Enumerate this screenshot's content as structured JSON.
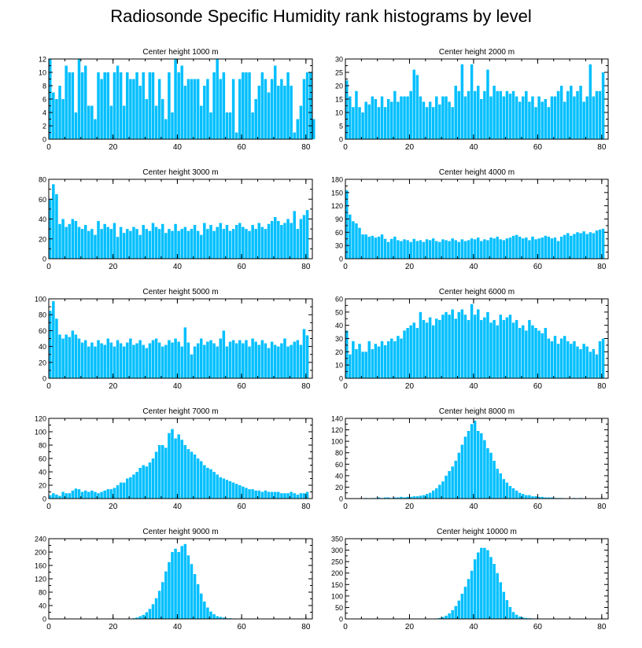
{
  "title": "Radiosonde Specific Humidity rank histograms by level",
  "bar_color": "#00bfff",
  "chart_data": [
    {
      "type": "bar",
      "title": "Center height 1000 m",
      "xlim": [
        0,
        82
      ],
      "ylim": [
        0,
        12
      ],
      "xticks": [
        0,
        20,
        40,
        60,
        80
      ],
      "yticks": [
        0,
        2,
        4,
        6,
        8,
        10,
        12
      ],
      "values": [
        12,
        7,
        6,
        8,
        6,
        11,
        10,
        10,
        4,
        12,
        10,
        11,
        5,
        5,
        3,
        10,
        9,
        10,
        10,
        5,
        10,
        11,
        10,
        5,
        10,
        9,
        9,
        10,
        8,
        10,
        6,
        10,
        10,
        5,
        9,
        6,
        3,
        10,
        4,
        12,
        10,
        11,
        8,
        9,
        9,
        9,
        9,
        5,
        8,
        9,
        4,
        10,
        12,
        9,
        10,
        4,
        4,
        9,
        1,
        9,
        10,
        10,
        10,
        4,
        6,
        8,
        10,
        9,
        7,
        9,
        11,
        8,
        9,
        8,
        10,
        8,
        1,
        3,
        5,
        9,
        10,
        10,
        3
      ]
    },
    {
      "type": "bar",
      "title": "Center height 2000 m",
      "xlim": [
        0,
        82
      ],
      "ylim": [
        0,
        30
      ],
      "xticks": [
        0,
        20,
        40,
        60,
        80
      ],
      "yticks": [
        0,
        5,
        10,
        15,
        20,
        25,
        30
      ],
      "values": [
        22,
        16,
        12,
        18,
        12,
        10,
        14,
        13,
        16,
        15,
        12,
        16,
        12,
        15,
        14,
        18,
        14,
        16,
        16,
        16,
        18,
        26,
        24,
        16,
        14,
        12,
        14,
        12,
        16,
        13,
        16,
        16,
        14,
        12,
        20,
        18,
        28,
        16,
        18,
        28,
        18,
        20,
        15,
        18,
        26,
        16,
        20,
        18,
        18,
        16,
        18,
        17,
        18,
        16,
        14,
        16,
        18,
        14,
        16,
        12,
        16,
        14,
        15,
        12,
        16,
        16,
        18,
        20,
        14,
        18,
        20,
        16,
        18,
        20,
        14,
        16,
        28,
        16,
        18,
        18,
        25
      ]
    },
    {
      "type": "bar",
      "title": "Center height 3000 m",
      "xlim": [
        0,
        82
      ],
      "ylim": [
        0,
        80
      ],
      "xticks": [
        0,
        20,
        40,
        60,
        80
      ],
      "yticks": [
        0,
        20,
        40,
        60,
        80
      ],
      "values": [
        60,
        75,
        65,
        35,
        40,
        32,
        35,
        40,
        38,
        32,
        30,
        34,
        28,
        30,
        24,
        38,
        30,
        35,
        32,
        30,
        36,
        22,
        32,
        26,
        30,
        28,
        32,
        30,
        24,
        34,
        30,
        28,
        36,
        32,
        30,
        35,
        26,
        30,
        28,
        35,
        28,
        30,
        32,
        28,
        30,
        34,
        28,
        24,
        36,
        30,
        34,
        28,
        32,
        36,
        30,
        34,
        28,
        30,
        34,
        36,
        32,
        30,
        28,
        34,
        30,
        36,
        32,
        30,
        35,
        38,
        42,
        38,
        34,
        36,
        40,
        36,
        48,
        30,
        40,
        44,
        49
      ]
    },
    {
      "type": "bar",
      "title": "Center height 4000 m",
      "xlim": [
        0,
        82
      ],
      "ylim": [
        0,
        180
      ],
      "xticks": [
        0,
        20,
        40,
        60,
        80
      ],
      "yticks": [
        0,
        30,
        60,
        90,
        120,
        150,
        180
      ],
      "values": [
        155,
        100,
        85,
        80,
        70,
        55,
        55,
        50,
        52,
        48,
        50,
        55,
        45,
        38,
        45,
        50,
        42,
        40,
        44,
        42,
        38,
        45,
        40,
        42,
        38,
        44,
        42,
        46,
        40,
        38,
        44,
        42,
        40,
        46,
        42,
        38,
        44,
        40,
        42,
        46,
        44,
        48,
        40,
        44,
        42,
        48,
        46,
        50,
        44,
        42,
        46,
        48,
        52,
        54,
        50,
        46,
        48,
        42,
        50,
        44,
        46,
        48,
        52,
        50,
        46,
        48,
        40,
        50,
        54,
        58,
        52,
        56,
        60,
        58,
        62,
        56,
        60,
        58,
        64,
        66,
        68
      ]
    },
    {
      "type": "bar",
      "title": "Center height 5000 m",
      "xlim": [
        0,
        82
      ],
      "ylim": [
        0,
        100
      ],
      "xticks": [
        0,
        20,
        40,
        60,
        80
      ],
      "yticks": [
        0,
        20,
        40,
        60,
        80,
        100
      ],
      "values": [
        85,
        97,
        75,
        55,
        50,
        55,
        52,
        60,
        55,
        50,
        45,
        48,
        40,
        45,
        40,
        48,
        44,
        42,
        50,
        45,
        40,
        48,
        44,
        40,
        45,
        50,
        42,
        44,
        48,
        42,
        38,
        44,
        48,
        50,
        45,
        40,
        42,
        48,
        45,
        50,
        46,
        40,
        64,
        45,
        30,
        40,
        44,
        50,
        42,
        46,
        48,
        44,
        40,
        50,
        60,
        40,
        46,
        48,
        44,
        48,
        44,
        48,
        40,
        50,
        46,
        42,
        48,
        44,
        38,
        46,
        42,
        40,
        44,
        50,
        40,
        42,
        46,
        48,
        42,
        62,
        54
      ]
    },
    {
      "type": "bar",
      "title": "Center height 6000 m",
      "xlim": [
        0,
        82
      ],
      "ylim": [
        0,
        60
      ],
      "xticks": [
        0,
        20,
        40,
        60,
        80
      ],
      "yticks": [
        0,
        10,
        20,
        30,
        40,
        50,
        60
      ],
      "values": [
        36,
        18,
        28,
        22,
        26,
        20,
        20,
        28,
        22,
        26,
        24,
        28,
        25,
        28,
        30,
        28,
        32,
        30,
        36,
        38,
        40,
        42,
        38,
        50,
        44,
        42,
        46,
        40,
        45,
        44,
        48,
        50,
        48,
        52,
        45,
        50,
        52,
        48,
        44,
        56,
        48,
        52,
        44,
        46,
        50,
        42,
        44,
        40,
        48,
        44,
        46,
        48,
        42,
        44,
        38,
        40,
        36,
        44,
        40,
        38,
        36,
        34,
        38,
        30,
        28,
        32,
        26,
        30,
        32,
        28,
        26,
        28,
        24,
        22,
        26,
        24,
        20,
        22,
        18,
        28,
        30
      ]
    },
    {
      "type": "bar",
      "title": "Center height 7000 m",
      "xlim": [
        0,
        82
      ],
      "ylim": [
        0,
        120
      ],
      "xticks": [
        0,
        20,
        40,
        60,
        80
      ],
      "yticks": [
        0,
        20,
        40,
        60,
        80,
        100,
        120
      ],
      "values": [
        5,
        8,
        6,
        4,
        10,
        8,
        8,
        12,
        15,
        14,
        10,
        12,
        10,
        12,
        10,
        8,
        10,
        12,
        14,
        14,
        16,
        20,
        24,
        24,
        30,
        32,
        36,
        40,
        46,
        50,
        48,
        54,
        60,
        70,
        80,
        80,
        76,
        98,
        104,
        90,
        96,
        88,
        80,
        74,
        70,
        66,
        60,
        56,
        50,
        46,
        44,
        40,
        36,
        32,
        30,
        28,
        26,
        24,
        22,
        20,
        18,
        16,
        14,
        14,
        12,
        12,
        10,
        12,
        10,
        10,
        10,
        10,
        8,
        8,
        8,
        10,
        8,
        6,
        8,
        8,
        10
      ]
    },
    {
      "type": "bar",
      "title": "Center height 8000 m",
      "xlim": [
        0,
        82
      ],
      "ylim": [
        0,
        140
      ],
      "xticks": [
        0,
        20,
        40,
        60,
        80
      ],
      "yticks": [
        0,
        20,
        40,
        60,
        80,
        100,
        120,
        140
      ],
      "values": [
        0,
        0,
        0,
        0,
        0,
        0,
        1,
        0,
        1,
        1,
        2,
        1,
        2,
        2,
        1,
        2,
        2,
        3,
        2,
        3,
        3,
        4,
        4,
        5,
        6,
        8,
        10,
        14,
        18,
        24,
        30,
        40,
        48,
        56,
        66,
        80,
        94,
        108,
        118,
        130,
        136,
        118,
        114,
        102,
        88,
        80,
        66,
        52,
        44,
        34,
        28,
        22,
        18,
        14,
        10,
        8,
        6,
        6,
        4,
        4,
        3,
        3,
        2,
        2,
        2,
        1,
        1,
        1,
        0,
        0,
        0,
        1,
        0,
        1,
        0,
        0,
        0,
        0,
        0,
        0,
        0
      ]
    },
    {
      "type": "bar",
      "title": "Center height 9000 m",
      "xlim": [
        0,
        82
      ],
      "ylim": [
        0,
        240
      ],
      "xticks": [
        0,
        20,
        40,
        60,
        80
      ],
      "yticks": [
        0,
        40,
        80,
        120,
        160,
        200,
        240
      ],
      "values": [
        0,
        0,
        0,
        0,
        0,
        0,
        0,
        0,
        0,
        0,
        0,
        0,
        0,
        0,
        0,
        0,
        0,
        0,
        0,
        0,
        0,
        0,
        0,
        0,
        0,
        0,
        2,
        4,
        8,
        12,
        20,
        30,
        44,
        62,
        84,
        110,
        142,
        170,
        200,
        210,
        200,
        218,
        224,
        190,
        164,
        134,
        104,
        76,
        52,
        34,
        22,
        14,
        8,
        6,
        4,
        2,
        2,
        1,
        1,
        1,
        0,
        0,
        0,
        0,
        0,
        0,
        0,
        0,
        0,
        0,
        0,
        0,
        0,
        0,
        0,
        0,
        0,
        0,
        0,
        0,
        0
      ]
    },
    {
      "type": "bar",
      "title": "Center height 10000 m",
      "xlim": [
        0,
        82
      ],
      "ylim": [
        0,
        350
      ],
      "xticks": [
        0,
        20,
        40,
        60,
        80
      ],
      "yticks": [
        0,
        50,
        100,
        150,
        200,
        250,
        300,
        350
      ],
      "values": [
        0,
        0,
        0,
        0,
        0,
        0,
        0,
        0,
        0,
        0,
        0,
        0,
        0,
        0,
        0,
        0,
        0,
        0,
        0,
        0,
        0,
        0,
        0,
        0,
        0,
        0,
        0,
        0,
        2,
        4,
        8,
        14,
        24,
        38,
        56,
        80,
        110,
        140,
        174,
        210,
        260,
        290,
        310,
        310,
        300,
        270,
        240,
        200,
        160,
        118,
        82,
        52,
        30,
        18,
        10,
        6,
        4,
        3,
        2,
        1,
        1,
        0,
        0,
        0,
        0,
        0,
        0,
        0,
        0,
        0,
        0,
        0,
        0,
        0,
        0,
        0,
        0,
        0,
        0,
        0,
        0
      ]
    }
  ]
}
